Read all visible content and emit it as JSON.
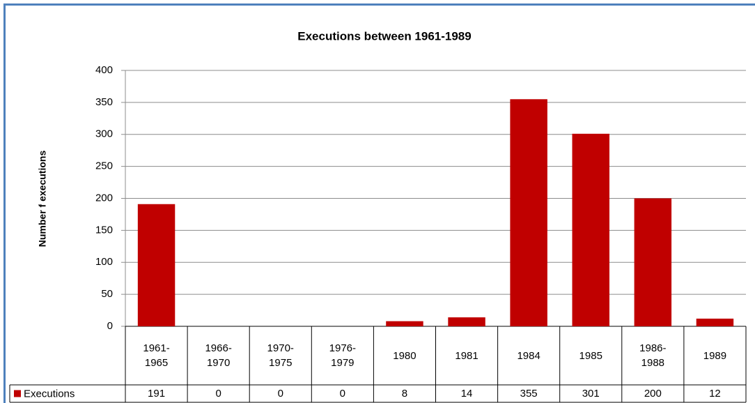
{
  "chart_data": {
    "type": "bar",
    "title": "Executions between 1961-1989",
    "y_label": "Number f executions",
    "categories": [
      "1961-1965",
      "1966-1970",
      "1970-1975",
      "1976-1979",
      "1980",
      "1981",
      "1984",
      "1985",
      "1986-1988",
      "1989"
    ],
    "series": [
      {
        "name": "Executions",
        "color": "#c00000",
        "values": [
          191,
          0,
          0,
          0,
          8,
          14,
          355,
          301,
          200,
          12
        ]
      }
    ],
    "ylim": [
      0,
      400
    ],
    "yticks": [
      0,
      50,
      100,
      150,
      200,
      250,
      300,
      350,
      400
    ],
    "grid": true,
    "data_table": true
  }
}
